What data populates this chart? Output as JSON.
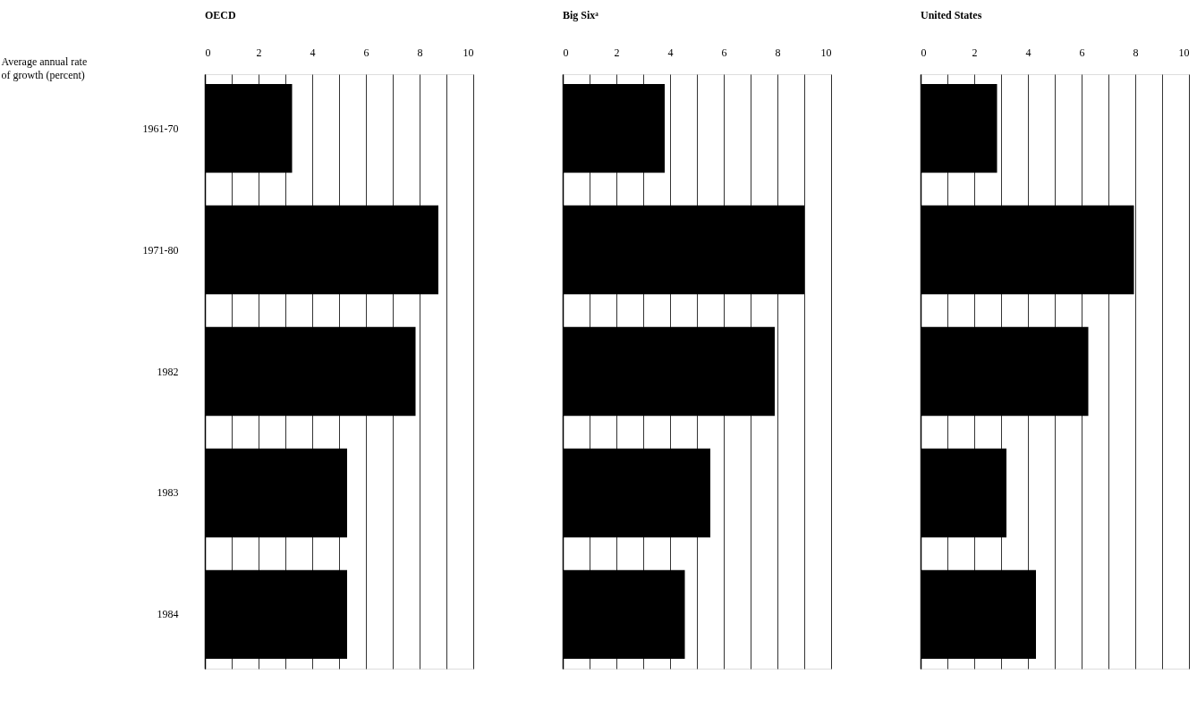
{
  "chart_data": [
    {
      "type": "bar",
      "orientation": "horizontal",
      "title": "OECD",
      "xlabel": "Average annual rate\nof growth (percent)",
      "categories": [
        "1961-70",
        "1971-80",
        "1982",
        "1983",
        "1984"
      ],
      "values": [
        3.25,
        8.7,
        7.85,
        5.3,
        5.3
      ],
      "color": "#000000",
      "xlim": [
        0,
        10
      ],
      "xticks": [
        0,
        {
          "value": 1,
          "label": null
        },
        2,
        {
          "value": 3,
          "label": null
        },
        4,
        {
          "value": 5,
          "label": null
        },
        6,
        {
          "value": 7,
          "label": null
        },
        8,
        {
          "value": 9,
          "label": null
        },
        10
      ],
      "grid": "x"
    },
    {
      "type": "bar",
      "orientation": "horizontal",
      "title": "Big Sixᵃ",
      "categories": [
        "1961-70",
        "1971-80",
        "1982",
        "1983",
        "1984"
      ],
      "values": [
        3.8,
        9.0,
        7.9,
        5.5,
        4.55
      ],
      "color": "#000000",
      "xlim": [
        0,
        10
      ],
      "xticks": [
        0,
        {
          "value": 1,
          "label": null
        },
        2,
        {
          "value": 3,
          "label": null
        },
        4,
        {
          "value": 5,
          "label": null
        },
        6,
        {
          "value": 7,
          "label": null
        },
        8,
        {
          "value": 9,
          "label": null
        },
        10
      ],
      "grid": "x",
      "tick_labels": "x"
    },
    {
      "type": "bar",
      "orientation": "horizontal",
      "title": "United States",
      "categories": [
        "1961-70",
        "1971-80",
        "1982",
        "1983",
        "1984"
      ],
      "values": [
        2.85,
        7.95,
        6.25,
        3.2,
        4.3
      ],
      "color": "#000000",
      "xlim": [
        0,
        10
      ],
      "xticks": [
        0,
        {
          "value": 1,
          "label": null
        },
        2,
        {
          "value": 3,
          "label": null
        },
        4,
        {
          "value": 5,
          "label": null
        },
        6,
        {
          "value": 7,
          "label": null
        },
        8,
        {
          "value": 9,
          "label": null
        },
        10
      ],
      "grid": "x",
      "tick_labels": "x"
    }
  ]
}
